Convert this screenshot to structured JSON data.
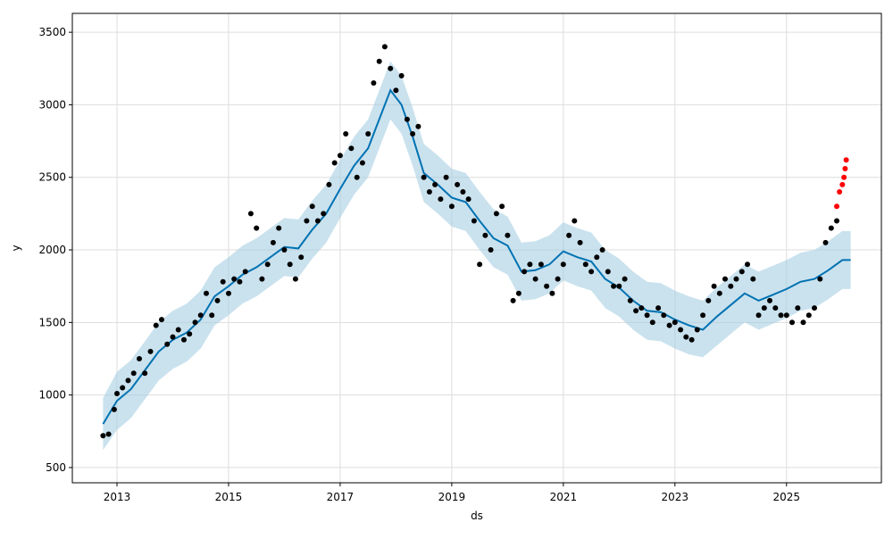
{
  "chart_data": {
    "type": "scatter",
    "title": "",
    "xlabel": "ds",
    "ylabel": "y",
    "xlim": [
      2012.2,
      2026.7
    ],
    "ylim": [
      395,
      3630
    ],
    "grid": true,
    "legend": "none",
    "x_ticks": [
      2013,
      2015,
      2017,
      2019,
      2021,
      2023,
      2025
    ],
    "y_ticks": [
      500,
      1000,
      1500,
      2000,
      2500,
      3000,
      3500
    ],
    "colors": {
      "forecast_line": "#0072B2",
      "uncertainty_band": "#a6cee3",
      "observed_points": "#000000",
      "recent_points": "#ff0000",
      "grid": "#dddddd"
    },
    "series": [
      {
        "kind": "forecast",
        "x": [
          2012.75,
          2013.0,
          2013.25,
          2013.5,
          2013.75,
          2014.0,
          2014.25,
          2014.5,
          2014.75,
          2015.0,
          2015.25,
          2015.5,
          2015.75,
          2016.0,
          2016.25,
          2016.5,
          2016.75,
          2017.0,
          2017.25,
          2017.5,
          2017.75,
          2017.9,
          2018.1,
          2018.3,
          2018.5,
          2018.75,
          2019.0,
          2019.25,
          2019.5,
          2019.75,
          2020.0,
          2020.25,
          2020.5,
          2020.75,
          2021.0,
          2021.25,
          2021.5,
          2021.75,
          2022.0,
          2022.25,
          2022.5,
          2022.75,
          2023.0,
          2023.25,
          2023.5,
          2023.75,
          2024.0,
          2024.25,
          2024.5,
          2024.75,
          2025.0,
          2025.25,
          2025.5,
          2025.75,
          2026.0,
          2026.15
        ],
        "y": [
          800,
          960,
          1040,
          1170,
          1300,
          1380,
          1430,
          1520,
          1680,
          1750,
          1830,
          1880,
          1950,
          2020,
          2010,
          2140,
          2250,
          2420,
          2580,
          2700,
          2950,
          3100,
          3000,
          2780,
          2530,
          2450,
          2360,
          2330,
          2200,
          2080,
          2030,
          1850,
          1860,
          1900,
          1990,
          1950,
          1920,
          1800,
          1740,
          1650,
          1580,
          1570,
          1520,
          1480,
          1450,
          1540,
          1620,
          1700,
          1650,
          1690,
          1730,
          1780,
          1800,
          1860,
          1930,
          1930
        ],
        "lower": [
          620,
          760,
          840,
          970,
          1100,
          1180,
          1230,
          1320,
          1480,
          1550,
          1630,
          1680,
          1750,
          1820,
          1810,
          1940,
          2050,
          2220,
          2380,
          2500,
          2750,
          2900,
          2800,
          2580,
          2330,
          2250,
          2160,
          2130,
          2000,
          1880,
          1830,
          1650,
          1660,
          1700,
          1790,
          1750,
          1720,
          1600,
          1540,
          1450,
          1380,
          1370,
          1320,
          1280,
          1260,
          1340,
          1420,
          1500,
          1450,
          1490,
          1530,
          1580,
          1600,
          1660,
          1730,
          1730
        ],
        "upper": [
          980,
          1160,
          1240,
          1370,
          1500,
          1580,
          1630,
          1720,
          1880,
          1950,
          2030,
          2080,
          2150,
          2220,
          2210,
          2340,
          2450,
          2620,
          2780,
          2900,
          3150,
          3300,
          3200,
          2980,
          2730,
          2650,
          2560,
          2530,
          2400,
          2280,
          2230,
          2050,
          2060,
          2100,
          2190,
          2150,
          2120,
          2000,
          1940,
          1850,
          1780,
          1770,
          1720,
          1680,
          1650,
          1740,
          1820,
          1900,
          1850,
          1890,
          1930,
          1980,
          2000,
          2060,
          2130,
          2130
        ]
      },
      {
        "kind": "observed",
        "x": [
          2012.75,
          2012.85,
          2012.95,
          2013.0,
          2013.1,
          2013.2,
          2013.3,
          2013.4,
          2013.5,
          2013.6,
          2013.7,
          2013.8,
          2013.9,
          2014.0,
          2014.1,
          2014.2,
          2014.3,
          2014.4,
          2014.5,
          2014.6,
          2014.7,
          2014.8,
          2014.9,
          2015.0,
          2015.1,
          2015.2,
          2015.3,
          2015.4,
          2015.5,
          2015.6,
          2015.7,
          2015.8,
          2015.9,
          2016.0,
          2016.1,
          2016.2,
          2016.3,
          2016.4,
          2016.5,
          2016.6,
          2016.7,
          2016.8,
          2016.9,
          2017.0,
          2017.1,
          2017.2,
          2017.3,
          2017.4,
          2017.5,
          2017.6,
          2017.7,
          2017.8,
          2017.9,
          2018.0,
          2018.1,
          2018.2,
          2018.3,
          2018.4,
          2018.5,
          2018.6,
          2018.7,
          2018.8,
          2018.9,
          2019.0,
          2019.1,
          2019.2,
          2019.3,
          2019.4,
          2019.5,
          2019.6,
          2019.7,
          2019.8,
          2019.9,
          2020.0,
          2020.1,
          2020.2,
          2020.3,
          2020.4,
          2020.5,
          2020.6,
          2020.7,
          2020.8,
          2020.9,
          2021.0,
          2021.1,
          2021.2,
          2021.3,
          2021.4,
          2021.5,
          2021.6,
          2021.7,
          2021.8,
          2021.9,
          2022.0,
          2022.1,
          2022.2,
          2022.3,
          2022.4,
          2022.5,
          2022.6,
          2022.7,
          2022.8,
          2022.9,
          2023.0,
          2023.1,
          2023.2,
          2023.3,
          2023.4,
          2023.5,
          2023.6,
          2023.7,
          2023.8,
          2023.9,
          2024.0,
          2024.1,
          2024.2,
          2024.3,
          2024.4,
          2024.5,
          2024.6,
          2024.7,
          2024.8,
          2024.9,
          2025.0,
          2025.1,
          2025.2,
          2025.3,
          2025.4,
          2025.5,
          2025.6,
          2025.7,
          2025.8,
          2025.9
        ],
        "y": [
          720,
          730,
          900,
          1010,
          1050,
          1100,
          1150,
          1250,
          1150,
          1300,
          1480,
          1520,
          1350,
          1400,
          1450,
          1380,
          1420,
          1500,
          1550,
          1700,
          1550,
          1650,
          1780,
          1700,
          1800,
          1780,
          1850,
          2250,
          2150,
          1800,
          1900,
          2050,
          2150,
          2000,
          1900,
          1800,
          1950,
          2200,
          2300,
          2200,
          2250,
          2450,
          2600,
          2650,
          2800,
          2700,
          2500,
          2600,
          2800,
          3150,
          3300,
          3400,
          3250,
          3100,
          3200,
          2900,
          2800,
          2850,
          2500,
          2400,
          2450,
          2350,
          2500,
          2300,
          2450,
          2400,
          2350,
          2200,
          1900,
          2100,
          2000,
          2250,
          2300,
          2100,
          1650,
          1700,
          1850,
          1900,
          1800,
          1900,
          1750,
          1700,
          1800,
          1900,
          2100,
          2200,
          2050,
          1900,
          1850,
          1950,
          2000,
          1850,
          1750,
          1750,
          1800,
          1650,
          1580,
          1600,
          1550,
          1500,
          1600,
          1550,
          1480,
          1500,
          1450,
          1400,
          1380,
          1450,
          1550,
          1650,
          1750,
          1700,
          1800,
          1750,
          1800,
          1850,
          1900,
          1800,
          1550,
          1600,
          1650,
          1600,
          1550,
          1550,
          1500,
          1600,
          1500,
          1550,
          1600,
          1800,
          2050,
          2150,
          2200
        ]
      },
      {
        "kind": "recent",
        "x": [
          2025.9,
          2025.95,
          2026.0,
          2026.03,
          2026.05,
          2026.07
        ],
        "y": [
          2300,
          2400,
          2450,
          2500,
          2560,
          2620
        ]
      }
    ]
  }
}
